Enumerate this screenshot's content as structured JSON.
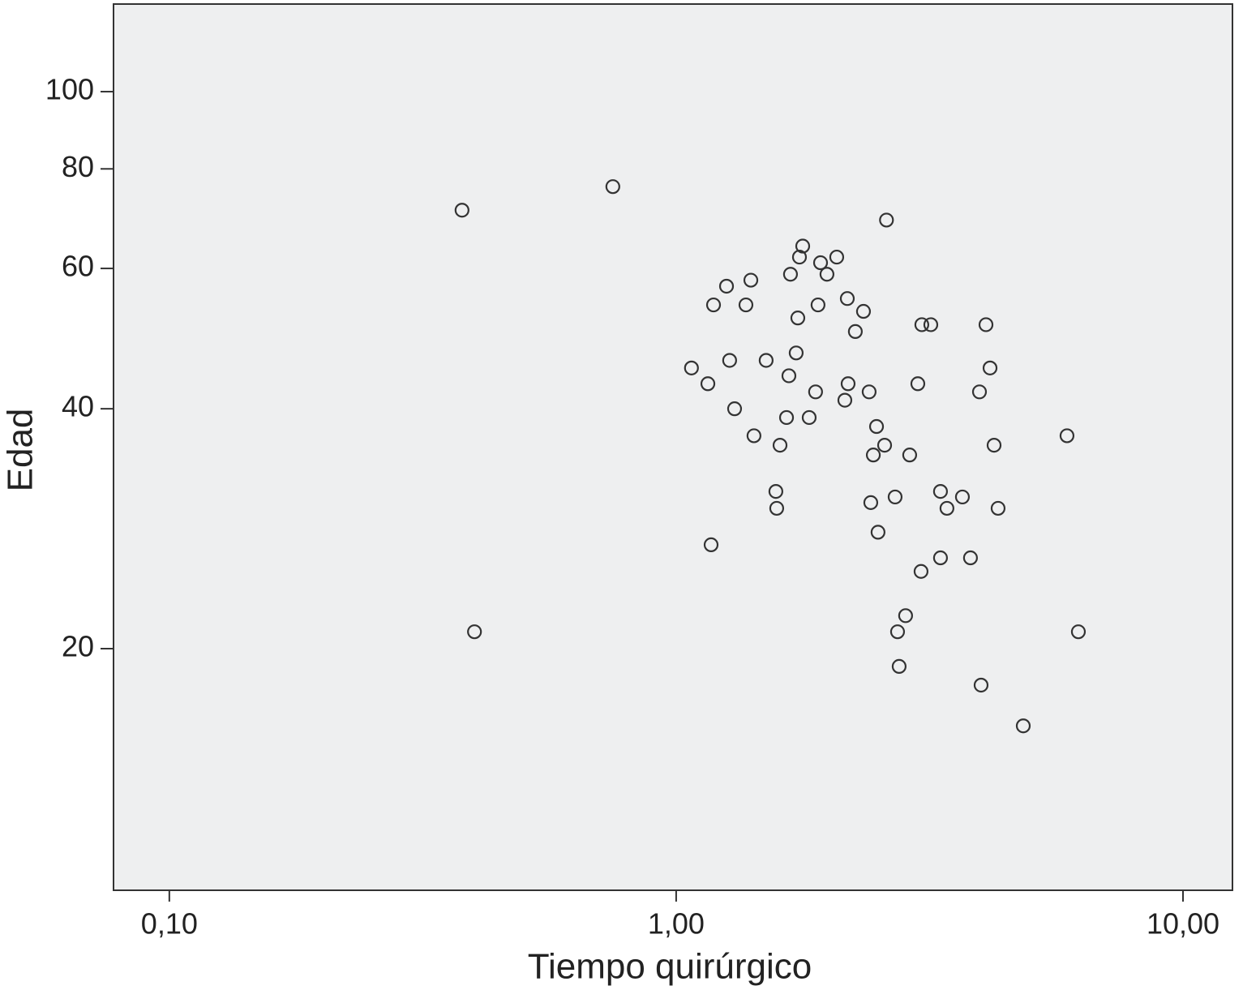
{
  "chart_data": {
    "type": "scatter",
    "x_label": "Tiempo quirúrgico",
    "y_label": "Edad",
    "x": [
      0.378,
      0.75,
      0.4,
      2.6,
      1.777,
      1.751,
      1.927,
      2.074,
      1.681,
      1.984,
      1.257,
      1.404,
      1.185,
      1.373,
      2.176,
      1.905,
      2.342,
      1.738,
      3.053,
      3.18,
      4.086,
      2.257,
      1.725,
      1.275,
      1.505,
      1.072,
      4.162,
      1.669,
      1.155,
      2.184,
      2.998,
      2.403,
      1.884,
      3.967,
      2.152,
      1.304,
      1.651,
      1.83,
      2.485,
      1.424,
      5.904,
      1.603,
      2.578,
      4.239,
      2.449,
      2.889,
      1.573,
      3.323,
      2.704,
      3.671,
      2.421,
      1.579,
      3.422,
      4.317,
      2.502,
      1.172,
      3.323,
      3.808,
      3.042,
      2.836,
      2.734,
      6.217,
      2.754,
      3.996,
      4.84
    ],
    "values": [
      71,
      76,
      21,
      69,
      64,
      62,
      61,
      62,
      59,
      59,
      57,
      58,
      54,
      54,
      55,
      54,
      53,
      52,
      51,
      51,
      51,
      50,
      47,
      46,
      46,
      45,
      45,
      44,
      43,
      43,
      43,
      42,
      42,
      42,
      41,
      40,
      39,
      39,
      38,
      37,
      37,
      36,
      36,
      36,
      35,
      35,
      31.5,
      31.5,
      31,
      31,
      30.5,
      30,
      30,
      30,
      28,
      27,
      26,
      26,
      25,
      22,
      21,
      21,
      19,
      18,
      16
    ],
    "color": "#333333",
    "plot_background": "#eeeff0",
    "xscale": "log",
    "yscale": "log",
    "xlim": [
      0.0776,
      12.52
    ],
    "ylim": [
      9.95,
      128.8
    ],
    "xticks": [
      {
        "value": 0.1,
        "label": "0,10"
      },
      {
        "value": 1,
        "label": "1,00"
      },
      {
        "value": 10,
        "label": "10,00"
      }
    ],
    "yticks": [
      20,
      40,
      60,
      80,
      100
    ]
  }
}
